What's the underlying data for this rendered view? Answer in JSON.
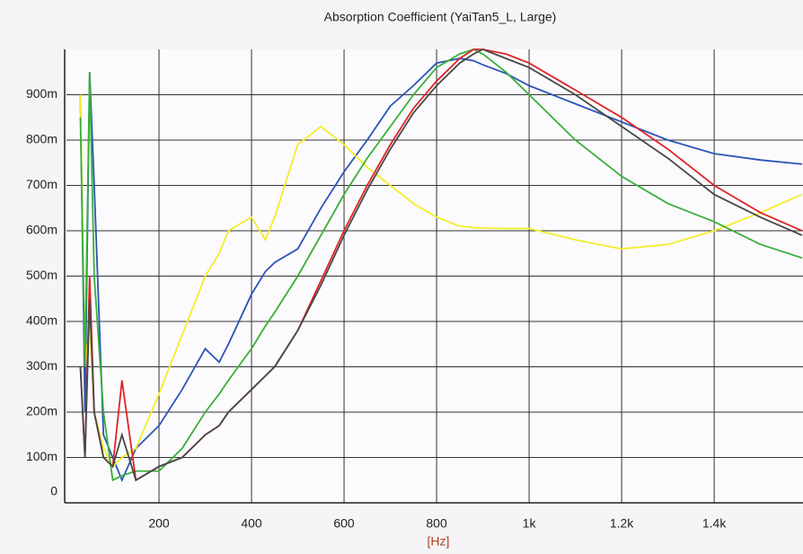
{
  "chart_data": {
    "type": "line",
    "title": "Absorption Coefficient (YaiTan5_L, Large)",
    "x_label": "[Hz]",
    "x": [
      30,
      40,
      50,
      60,
      80,
      100,
      120,
      150,
      200,
      250,
      300,
      330,
      350,
      400,
      430,
      450,
      500,
      550,
      600,
      650,
      700,
      750,
      800,
      850,
      880,
      900,
      950,
      1000,
      1100,
      1200,
      1300,
      1400,
      1500,
      1590
    ],
    "series": [
      {
        "name": "blue",
        "color": "#2a55b5",
        "values": [
          0.9,
          0.2,
          0.95,
          0.7,
          0.15,
          0.1,
          0.05,
          0.12,
          0.17,
          0.25,
          0.34,
          0.31,
          0.35,
          0.46,
          0.51,
          0.53,
          0.56,
          0.65,
          0.73,
          0.8,
          0.875,
          0.92,
          0.97,
          0.98,
          0.975,
          0.966,
          0.947,
          0.92,
          0.88,
          0.84,
          0.8,
          0.77,
          0.756,
          0.747
        ]
      },
      {
        "name": "yellow",
        "color": "#f2ee2a",
        "values": [
          0.9,
          0.3,
          0.4,
          0.2,
          0.12,
          0.08,
          0.1,
          0.12,
          0.24,
          0.37,
          0.5,
          0.55,
          0.6,
          0.63,
          0.58,
          0.63,
          0.79,
          0.83,
          0.79,
          0.74,
          0.7,
          0.66,
          0.63,
          0.61,
          0.607,
          0.606,
          0.605,
          0.605,
          0.58,
          0.56,
          0.57,
          0.6,
          0.64,
          0.68
        ]
      },
      {
        "name": "green",
        "color": "#38b038",
        "values": [
          0.85,
          0.3,
          0.95,
          0.5,
          0.2,
          0.05,
          0.06,
          0.07,
          0.07,
          0.12,
          0.2,
          0.24,
          0.27,
          0.34,
          0.39,
          0.42,
          0.5,
          0.59,
          0.68,
          0.76,
          0.83,
          0.9,
          0.96,
          0.99,
          1.0,
          0.99,
          0.95,
          0.9,
          0.8,
          0.72,
          0.66,
          0.62,
          0.57,
          0.54
        ]
      },
      {
        "name": "red",
        "color": "#e02424",
        "values": [
          0.3,
          0.1,
          0.5,
          0.2,
          0.1,
          0.08,
          0.27,
          0.05,
          0.08,
          0.1,
          0.15,
          0.17,
          0.2,
          0.25,
          0.28,
          0.3,
          0.38,
          0.49,
          0.6,
          0.7,
          0.79,
          0.87,
          0.93,
          0.98,
          1.0,
          1.0,
          0.99,
          0.97,
          0.91,
          0.85,
          0.78,
          0.7,
          0.64,
          0.6
        ]
      },
      {
        "name": "black",
        "color": "#484848",
        "values": [
          0.3,
          0.1,
          0.45,
          0.2,
          0.1,
          0.08,
          0.15,
          0.05,
          0.08,
          0.1,
          0.15,
          0.17,
          0.2,
          0.25,
          0.28,
          0.3,
          0.38,
          0.48,
          0.59,
          0.69,
          0.78,
          0.86,
          0.92,
          0.97,
          0.99,
          1.0,
          0.98,
          0.96,
          0.9,
          0.83,
          0.76,
          0.68,
          0.63,
          0.59
        ]
      }
    ],
    "xlim": [
      0,
      1592
    ],
    "ylim": [
      0,
      1
    ],
    "xticks": [
      200,
      400,
      600,
      800,
      {
        "value": 1000,
        "label": "1k"
      },
      {
        "value": 1200,
        "label": "1.2k"
      },
      {
        "value": 1400,
        "label": "1.4k"
      }
    ],
    "yticks": [
      0,
      {
        "value": 0.1,
        "label": "100m"
      },
      {
        "value": 0.2,
        "label": "200m"
      },
      {
        "value": 0.3,
        "label": "300m"
      },
      {
        "value": 0.4,
        "label": "400m"
      },
      {
        "value": 0.5,
        "label": "500m"
      },
      {
        "value": 0.6,
        "label": "600m"
      },
      {
        "value": 0.7,
        "label": "700m"
      },
      {
        "value": 0.8,
        "label": "800m"
      },
      {
        "value": 0.9,
        "label": "900m"
      }
    ],
    "grid": true
  }
}
